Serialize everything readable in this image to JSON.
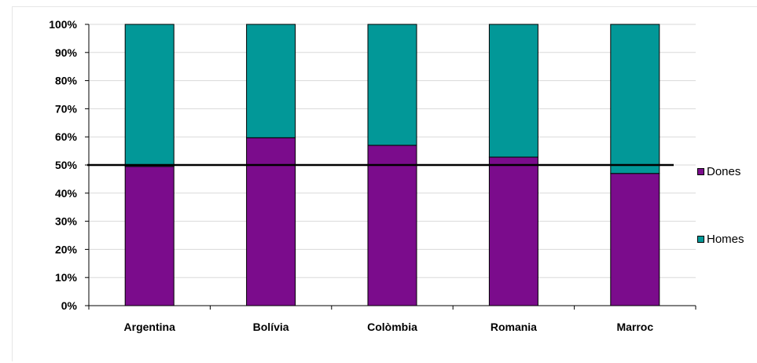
{
  "chart_data": {
    "type": "bar",
    "stacked": true,
    "categories": [
      "Argentina",
      "Bolívia",
      "Colòmbia",
      "Romania",
      "Marroc"
    ],
    "series": [
      {
        "name": "Dones",
        "color": "#7b0c8c",
        "values": [
          49.5,
          59.7,
          57.0,
          52.8,
          47.0
        ]
      },
      {
        "name": "Homes",
        "color": "#029898",
        "values": [
          50.5,
          40.3,
          43.0,
          47.2,
          53.0
        ]
      }
    ],
    "ylim": [
      0,
      100
    ],
    "yticks": [
      "0%",
      "10%",
      "20%",
      "30%",
      "40%",
      "50%",
      "60%",
      "70%",
      "80%",
      "90%",
      "100%"
    ],
    "reference_line": 50,
    "grid": true,
    "legend_position": "right",
    "title": "",
    "xlabel": "",
    "ylabel": ""
  }
}
